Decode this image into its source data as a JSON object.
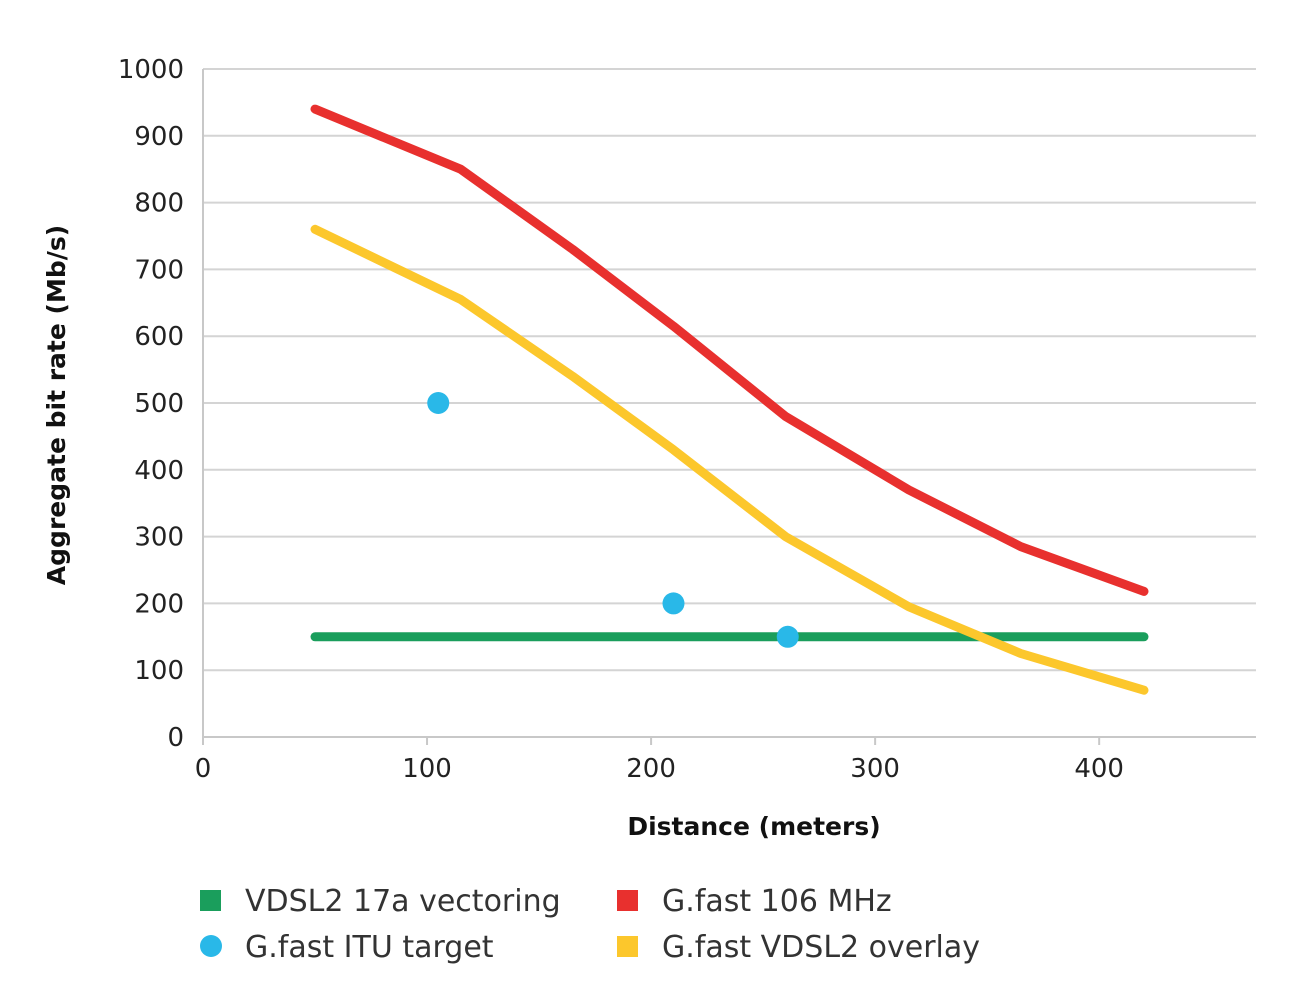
{
  "chart_data": {
    "type": "line",
    "xlabel": "Distance (meters)",
    "ylabel": "Aggregate bit rate (Mb/s)",
    "xlim": [
      0,
      470
    ],
    "ylim": [
      0,
      1000
    ],
    "x_ticks": [
      "0",
      "100",
      "200",
      "300",
      "400"
    ],
    "y_ticks": [
      "0",
      "100",
      "200",
      "300",
      "400",
      "500",
      "600",
      "700",
      "800",
      "900",
      "1000"
    ],
    "grid": "horizontal",
    "legend_position": "bottom",
    "series": [
      {
        "name": "VDSL2 17a vectoring",
        "kind": "line",
        "color": "#1a9e5c",
        "marker": "square",
        "x": [
          50,
          420
        ],
        "y": [
          150,
          150
        ]
      },
      {
        "name": "G.fast 106 MHz",
        "kind": "line",
        "color": "#e8302e",
        "marker": "square",
        "x": [
          50,
          115,
          165,
          210,
          260,
          315,
          365,
          420
        ],
        "y": [
          940,
          850,
          730,
          615,
          480,
          370,
          285,
          218
        ]
      },
      {
        "name": "G.fast ITU target",
        "kind": "scatter",
        "color": "#29b8e8",
        "marker": "circle",
        "x": [
          105,
          210,
          261
        ],
        "y": [
          500,
          200,
          150
        ]
      },
      {
        "name": "G.fast VDSL2 overlay",
        "kind": "line",
        "color": "#fcc72c",
        "marker": "square",
        "x": [
          50,
          115,
          165,
          210,
          260,
          315,
          365,
          420
        ],
        "y": [
          760,
          655,
          540,
          430,
          300,
          195,
          125,
          70
        ]
      }
    ]
  }
}
